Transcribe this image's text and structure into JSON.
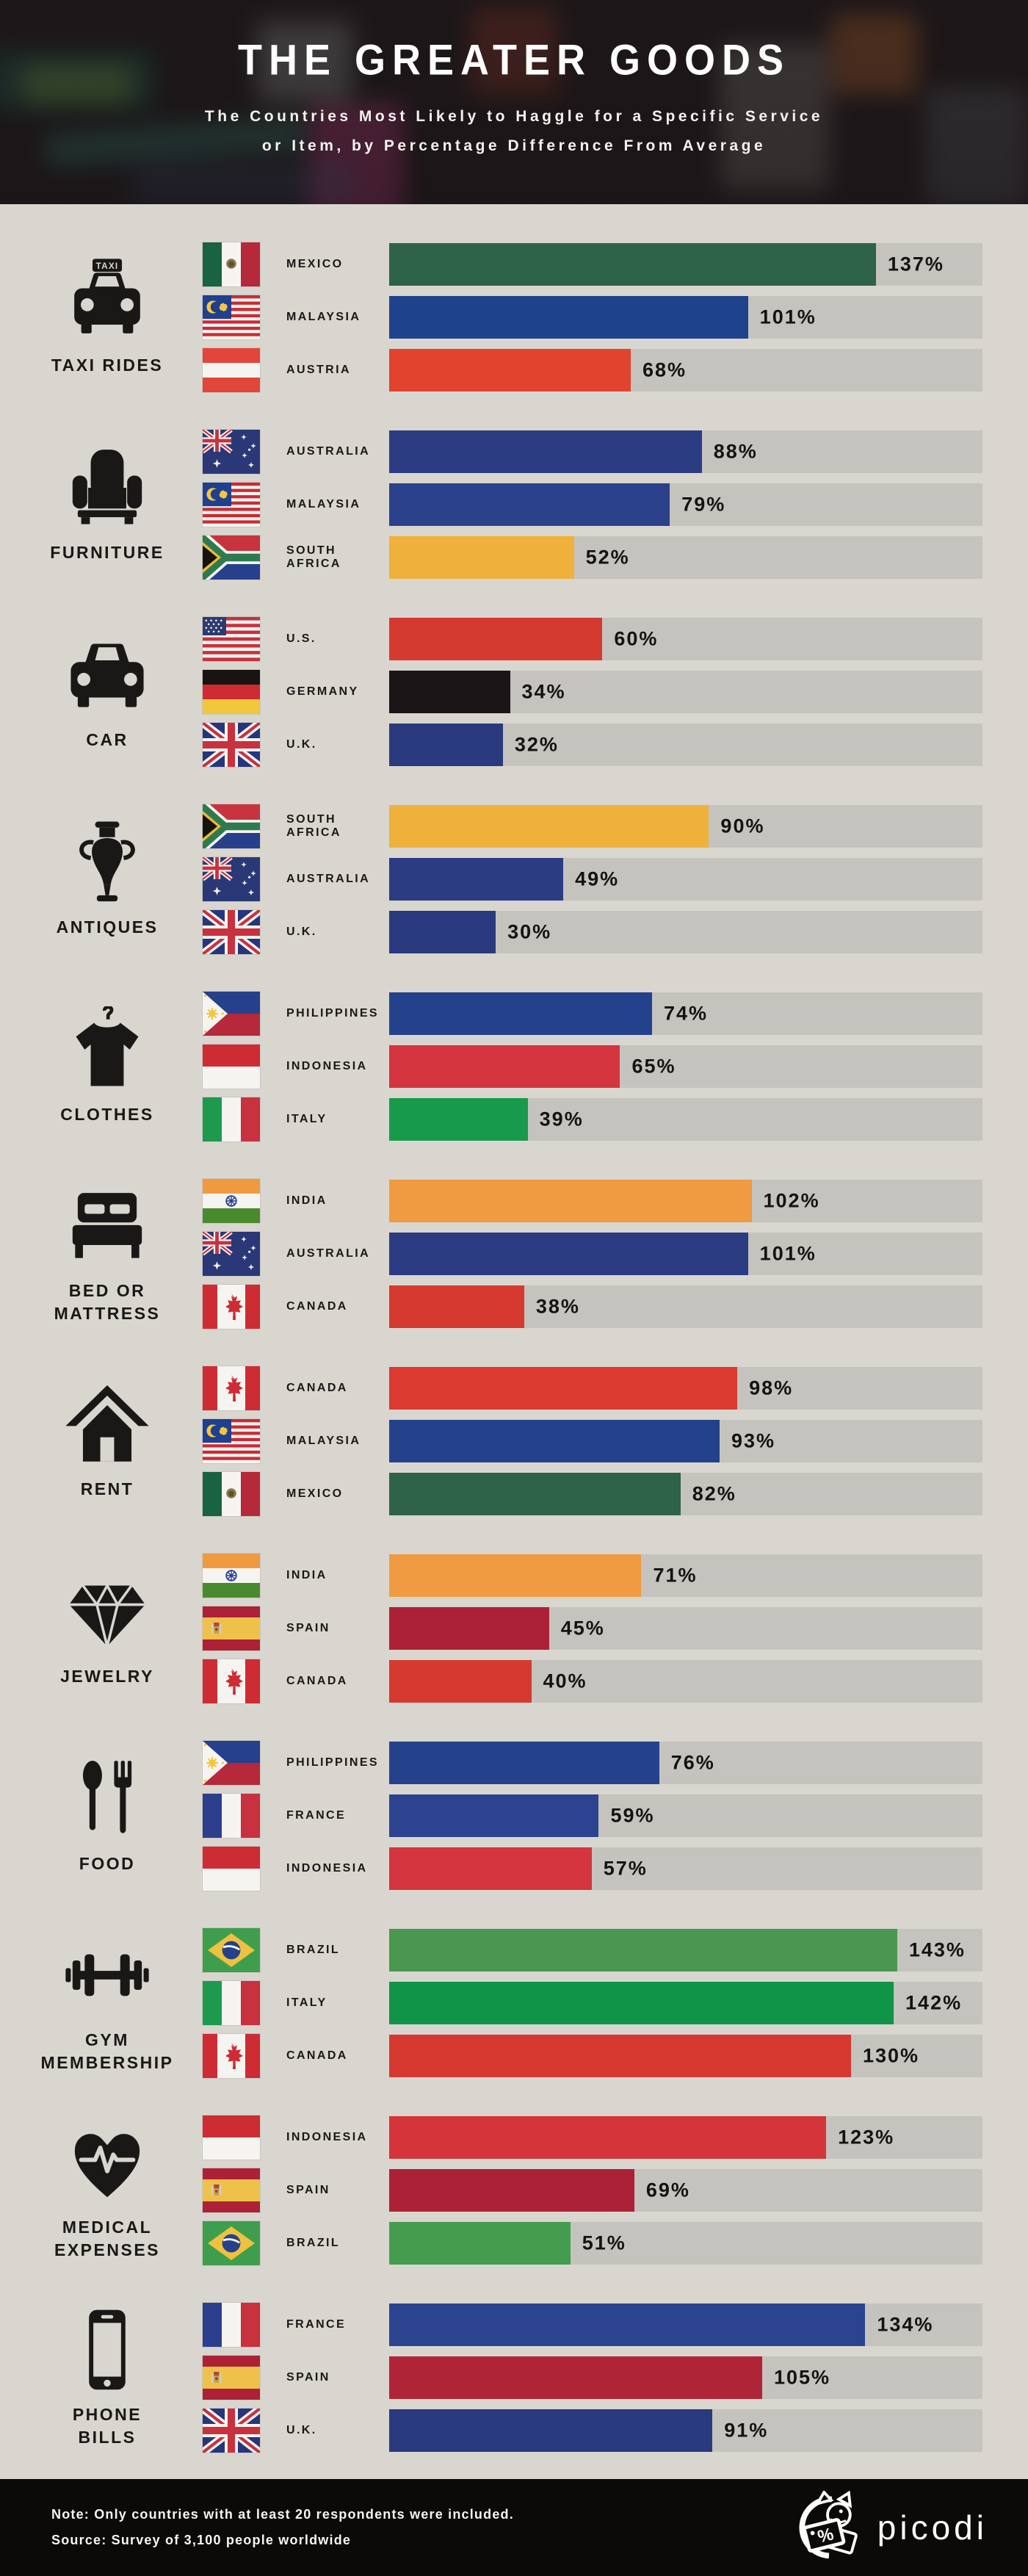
{
  "header": {
    "title": "THE GREATER GOODS",
    "subtitle": "The Countries Most Likely to Haggle for a Specific Service\nor Item, by Percentage Difference From Average"
  },
  "footer": {
    "note": "Note: Only countries with at least 20 respondents were included.",
    "source": "Source: Survey of 3,100 people worldwide",
    "brand": "picodi"
  },
  "colors": {
    "page_background": "#d9d6cf",
    "bar_track": "#c5c3bd",
    "text": "#1a1817",
    "footer_background": "#0c0a09"
  },
  "chart_data": {
    "type": "bar",
    "title": "The Countries Most Likely to Haggle for a Specific Service or Item, by Percentage Difference From Average",
    "unit": "percent difference from average",
    "xlim": [
      0,
      167
    ],
    "grid": false,
    "legend": "none",
    "sections": [
      {
        "category": "TAXI RIDES",
        "icon": "taxi-icon",
        "rows": [
          {
            "country": "MEXICO",
            "flag": "mexico",
            "value": 137,
            "label": "137%",
            "color": "#2e6349"
          },
          {
            "country": "MALAYSIA",
            "flag": "malaysia",
            "value": 101,
            "label": "101%",
            "color": "#1f428c"
          },
          {
            "country": "AUSTRIA",
            "flag": "austria",
            "value": 68,
            "label": "68%",
            "color": "#e1432f"
          }
        ]
      },
      {
        "category": "FURNITURE",
        "icon": "armchair-icon",
        "rows": [
          {
            "country": "AUSTRALIA",
            "flag": "australia",
            "value": 88,
            "label": "88%",
            "color": "#2b3c83"
          },
          {
            "country": "MALAYSIA",
            "flag": "malaysia",
            "value": 79,
            "label": "79%",
            "color": "#2b418c"
          },
          {
            "country": "SOUTH AFRICA",
            "flag": "south-africa",
            "value": 52,
            "label": "52%",
            "color": "#efb13b"
          }
        ]
      },
      {
        "category": "CAR",
        "icon": "car-icon",
        "rows": [
          {
            "country": "U.S.",
            "flag": "us",
            "value": 60,
            "label": "60%",
            "color": "#d53a31"
          },
          {
            "country": "GERMANY",
            "flag": "germany",
            "value": 34,
            "label": "34%",
            "color": "#1a1617"
          },
          {
            "country": "U.K.",
            "flag": "uk",
            "value": 32,
            "label": "32%",
            "color": "#2a3a7e"
          }
        ]
      },
      {
        "category": "ANTIQUES",
        "icon": "amphora-icon",
        "rows": [
          {
            "country": "SOUTH AFRICA",
            "flag": "south-africa",
            "value": 90,
            "label": "90%",
            "color": "#efb13b"
          },
          {
            "country": "AUSTRALIA",
            "flag": "australia",
            "value": 49,
            "label": "49%",
            "color": "#2b3c83"
          },
          {
            "country": "U.K.",
            "flag": "uk",
            "value": 30,
            "label": "30%",
            "color": "#2a3a7e"
          }
        ]
      },
      {
        "category": "CLOTHES",
        "icon": "tshirt-icon",
        "rows": [
          {
            "country": "PHILIPPINES",
            "flag": "philippines",
            "value": 74,
            "label": "74%",
            "color": "#24428c"
          },
          {
            "country": "INDONESIA",
            "flag": "indonesia",
            "value": 65,
            "label": "65%",
            "color": "#d4353e"
          },
          {
            "country": "ITALY",
            "flag": "italy",
            "value": 39,
            "label": "39%",
            "color": "#189a4b"
          }
        ]
      },
      {
        "category": "BED OR\nMATTRESS",
        "icon": "bed-icon",
        "rows": [
          {
            "country": "INDIA",
            "flag": "india",
            "value": 102,
            "label": "102%",
            "color": "#f09a42"
          },
          {
            "country": "AUSTRALIA",
            "flag": "australia",
            "value": 101,
            "label": "101%",
            "color": "#2b3c83"
          },
          {
            "country": "CANADA",
            "flag": "canada",
            "value": 38,
            "label": "38%",
            "color": "#d5392f"
          }
        ]
      },
      {
        "category": "RENT",
        "icon": "house-icon",
        "rows": [
          {
            "country": "CANADA",
            "flag": "canada",
            "value": 98,
            "label": "98%",
            "color": "#da3a30"
          },
          {
            "country": "MALAYSIA",
            "flag": "malaysia",
            "value": 93,
            "label": "93%",
            "color": "#24428c"
          },
          {
            "country": "MEXICO",
            "flag": "mexico",
            "value": 82,
            "label": "82%",
            "color": "#2e6349"
          }
        ]
      },
      {
        "category": "JEWELRY",
        "icon": "diamond-icon",
        "rows": [
          {
            "country": "INDIA",
            "flag": "india",
            "value": 71,
            "label": "71%",
            "color": "#f09a42"
          },
          {
            "country": "SPAIN",
            "flag": "spain",
            "value": 45,
            "label": "45%",
            "color": "#ac2135"
          },
          {
            "country": "CANADA",
            "flag": "canada",
            "value": 40,
            "label": "40%",
            "color": "#d5392f"
          }
        ]
      },
      {
        "category": "FOOD",
        "icon": "cutlery-icon",
        "rows": [
          {
            "country": "PHILIPPINES",
            "flag": "philippines",
            "value": 76,
            "label": "76%",
            "color": "#24428c"
          },
          {
            "country": "FRANCE",
            "flag": "france",
            "value": 59,
            "label": "59%",
            "color": "#2c4390"
          },
          {
            "country": "INDONESIA",
            "flag": "indonesia",
            "value": 57,
            "label": "57%",
            "color": "#d4353e"
          }
        ]
      },
      {
        "category": "GYM\nMEMBERSHIP",
        "icon": "dumbbell-icon",
        "rows": [
          {
            "country": "BRAZIL",
            "flag": "brazil",
            "value": 143,
            "label": "143%",
            "color": "#4a9750"
          },
          {
            "country": "ITALY",
            "flag": "italy",
            "value": 142,
            "label": "142%",
            "color": "#0f9448"
          },
          {
            "country": "CANADA",
            "flag": "canada",
            "value": 130,
            "label": "130%",
            "color": "#d5392f"
          }
        ]
      },
      {
        "category": "MEDICAL\nEXPENSES",
        "icon": "heart-pulse-icon",
        "rows": [
          {
            "country": "INDONESIA",
            "flag": "indonesia",
            "value": 123,
            "label": "123%",
            "color": "#d4343a"
          },
          {
            "country": "SPAIN",
            "flag": "spain",
            "value": 69,
            "label": "69%",
            "color": "#ac2135"
          },
          {
            "country": "BRAZIL",
            "flag": "brazil",
            "value": 51,
            "label": "51%",
            "color": "#449c4e"
          }
        ]
      },
      {
        "category": "PHONE\nBILLS",
        "icon": "phone-icon",
        "rows": [
          {
            "country": "FRANCE",
            "flag": "france",
            "value": 134,
            "label": "134%",
            "color": "#2c4390"
          },
          {
            "country": "SPAIN",
            "flag": "spain",
            "value": 105,
            "label": "105%",
            "color": "#b02438"
          },
          {
            "country": "U.K.",
            "flag": "uk",
            "value": 91,
            "label": "91%",
            "color": "#2a3a7e"
          }
        ]
      }
    ]
  }
}
